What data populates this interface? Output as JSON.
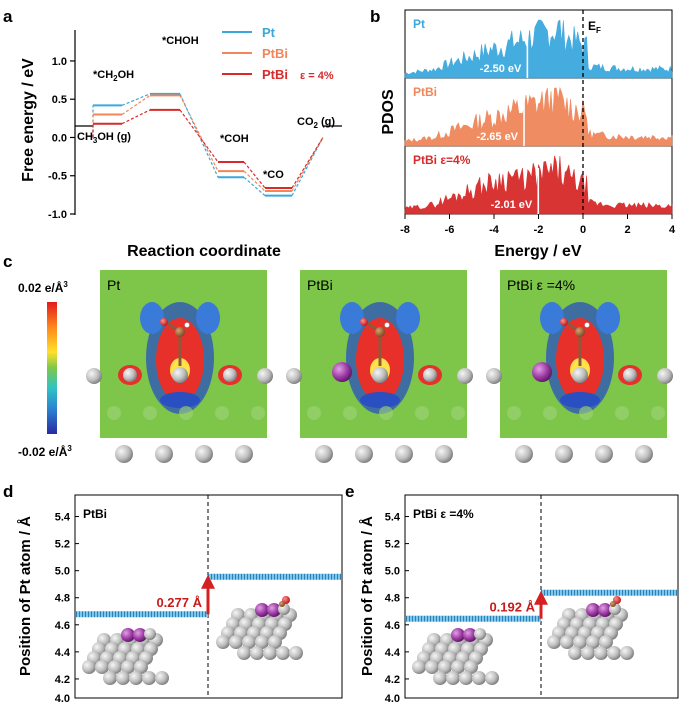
{
  "panels": {
    "a": "a",
    "b": "b",
    "c": "c",
    "d": "d",
    "e": "e"
  },
  "colors": {
    "pt": "#3aa8dd",
    "ptbi": "#f0865a",
    "ptbi_strain": "#d82a2a",
    "arrow": "#d42020",
    "field": "#7ec64a",
    "atom_pt": "#c2c2c2",
    "atom_bi": "#a040a8"
  },
  "chart_data": [
    {
      "id": "a",
      "type": "line",
      "title": "",
      "xlabel": "Reaction coordinate",
      "ylabel": "Free energy / eV",
      "ylim": [
        -1.0,
        1.3
      ],
      "yticks": [
        -1.0,
        -0.5,
        0.0,
        0.5,
        1.0
      ],
      "ytick_labels": [
        "-1.0",
        "-0.5",
        "0.0",
        "0.5",
        "1.0"
      ],
      "states": [
        "CH3OH (g)",
        "*CH2OH",
        "*CHOH",
        "*COH",
        "*CO",
        "CO2 (g)"
      ],
      "state_labels": [
        {
          "prefix": "CH",
          "sub": "3",
          "suffix": "OH (g)"
        },
        {
          "prefix": "*CH",
          "sub": "2",
          "suffix": "OH"
        },
        {
          "prefix": "*CHOH",
          "sub": "",
          "suffix": ""
        },
        {
          "prefix": "*COH",
          "sub": "",
          "suffix": ""
        },
        {
          "prefix": "*CO",
          "sub": "",
          "suffix": ""
        },
        {
          "prefix": "CO",
          "sub": "2",
          "suffix": " (g)"
        }
      ],
      "series": [
        {
          "name": "Pt",
          "strain": "",
          "color": "#3aa8dd",
          "values": [
            0,
            0.42,
            0.57,
            -0.52,
            -0.76,
            0
          ]
        },
        {
          "name": "PtBi",
          "strain": "",
          "color": "#f0865a",
          "values": [
            0,
            0.3,
            0.55,
            -0.44,
            -0.7,
            0
          ]
        },
        {
          "name": "PtBi",
          "strain": "ε = 4%",
          "color": "#d82a2a",
          "values": [
            0,
            0.18,
            0.36,
            -0.32,
            -0.66,
            0
          ]
        }
      ]
    },
    {
      "id": "b",
      "type": "area",
      "xlabel": "Energy / eV",
      "ylabel": "PDOS",
      "xlim": [
        -8,
        4
      ],
      "xticks": [
        -8,
        -6,
        -4,
        -2,
        0,
        2,
        4
      ],
      "xtick_labels": [
        "-8",
        "-6",
        "-4",
        "-2",
        "0",
        "2",
        "4"
      ],
      "fermi_label": "E",
      "fermi_sub": "F",
      "fermi_energy": 0,
      "series": [
        {
          "name": "Pt",
          "color": "#3aa8dd",
          "d_band_center": -2.5,
          "center_label": "-2.50 eV"
        },
        {
          "name": "PtBi",
          "color": "#f0865a",
          "d_band_center": -2.65,
          "center_label": "-2.65 eV"
        },
        {
          "name": "PtBi ε=4%",
          "color": "#d82a2a",
          "d_band_center": -2.01,
          "center_label": "-2.01 eV"
        }
      ]
    },
    {
      "id": "c",
      "type": "heatmap",
      "colorbar_max": "0.02 e/Å",
      "colorbar_min": "-0.02 e/Å",
      "colorbar_sup": "3",
      "maps": [
        {
          "label": "Pt"
        },
        {
          "label": "PtBi"
        },
        {
          "label": "PtBi ε =4%"
        }
      ]
    },
    {
      "id": "d",
      "type": "line",
      "title": "PtBi",
      "ylabel": "Position of Pt atom / Å",
      "ylim": [
        4.0,
        5.5
      ],
      "yticks": [
        4.0,
        4.2,
        4.4,
        4.6,
        4.8,
        5.0,
        5.2,
        5.4
      ],
      "ytick_labels": [
        "4.0",
        "4.2",
        "4.4",
        "4.6",
        "4.8",
        "5.0",
        "5.2",
        "5.4"
      ],
      "before": 4.678,
      "after": 4.955,
      "shift_label": "0.277 Å"
    },
    {
      "id": "e",
      "type": "line",
      "title": "PtBi ε =4%",
      "ylabel": "Position of Pt atom / Å",
      "ylim": [
        4.0,
        5.5
      ],
      "yticks": [
        4.0,
        4.2,
        4.4,
        4.6,
        4.8,
        5.0,
        5.2,
        5.4
      ],
      "ytick_labels": [
        "4.0",
        "4.2",
        "4.4",
        "4.6",
        "4.8",
        "5.0",
        "5.2",
        "5.4"
      ],
      "before": 4.645,
      "after": 4.837,
      "shift_label": "0.192 Å"
    }
  ]
}
